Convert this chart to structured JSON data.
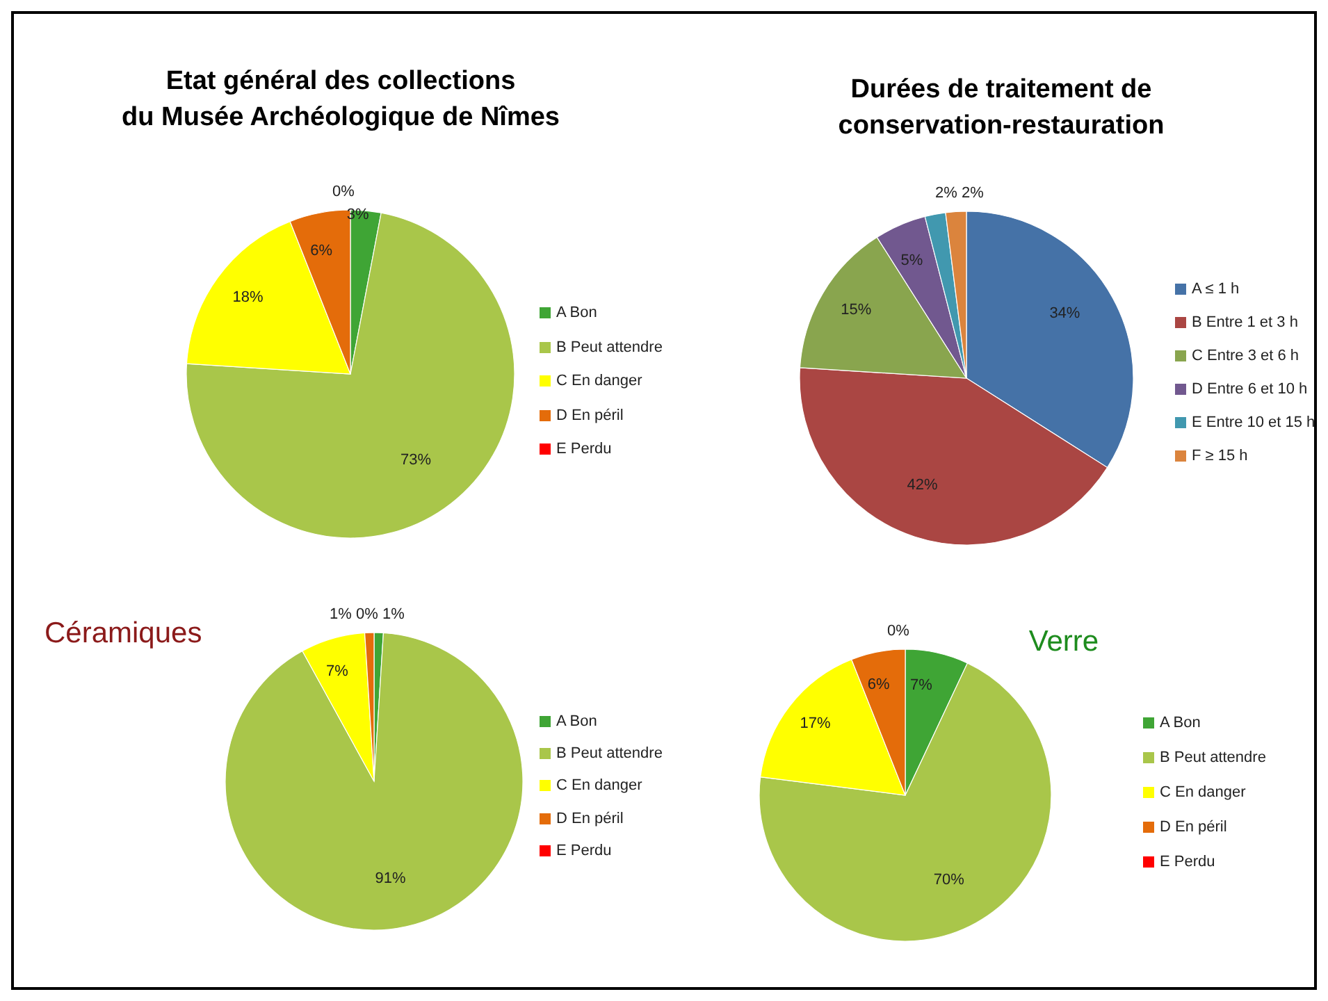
{
  "chart_data": [
    {
      "type": "pie",
      "title": "Etat général des collections\ndu Musée Archéologique de Nîmes",
      "categories": [
        "A Bon",
        "B Peut attendre",
        "C En danger",
        "D En péril",
        "E Perdu"
      ],
      "values": [
        3,
        73,
        18,
        6,
        0
      ],
      "value_labels": [
        "3%",
        "73%",
        "18%",
        "6%",
        "0%"
      ],
      "colors": [
        "#3fa535",
        "#a9c64a",
        "#ffff00",
        "#e46c0a",
        "#ff0000"
      ],
      "legend": "right"
    },
    {
      "type": "pie",
      "title": "Durées de traitement de\nconservation-restauration",
      "categories": [
        "A ≤ 1 h",
        "B Entre 1 et 3 h",
        "C Entre 3 et 6 h",
        "D Entre 6 et 10 h",
        "E Entre 10 et 15 h",
        "F ≥ 15 h"
      ],
      "values": [
        34,
        42,
        15,
        5,
        2,
        2
      ],
      "value_labels": [
        "34%",
        "42%",
        "15%",
        "5%",
        "2%",
        "2%"
      ],
      "colors": [
        "#4572a7",
        "#aa4643",
        "#89a54e",
        "#71588f",
        "#4198af",
        "#db843d"
      ],
      "legend": "right"
    },
    {
      "type": "pie",
      "title": "Céramiques",
      "categories": [
        "A Bon",
        "B Peut attendre",
        "C En danger",
        "D En péril",
        "E Perdu"
      ],
      "values": [
        1,
        91,
        7,
        1,
        0
      ],
      "value_labels": [
        "1%",
        "91%",
        "7%",
        "1%",
        "0%"
      ],
      "colors": [
        "#3fa535",
        "#a9c64a",
        "#ffff00",
        "#e46c0a",
        "#ff0000"
      ],
      "legend": "right"
    },
    {
      "type": "pie",
      "title": "Verre",
      "categories": [
        "A Bon",
        "B Peut attendre",
        "C En danger",
        "D En péril",
        "E Perdu"
      ],
      "values": [
        7,
        70,
        17,
        6,
        0
      ],
      "value_labels": [
        "7%",
        "70%",
        "17%",
        "6%",
        "0%"
      ],
      "colors": [
        "#3fa535",
        "#a9c64a",
        "#ffff00",
        "#e46c0a",
        "#ff0000"
      ],
      "legend": "right"
    }
  ]
}
